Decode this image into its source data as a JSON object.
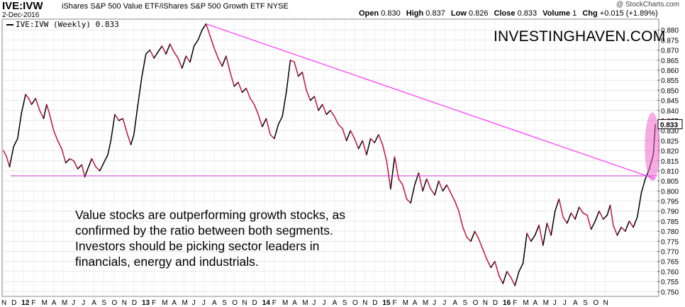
{
  "header": {
    "symbol": "IVE:IVW",
    "full_name": "iShares S&P 500 Value ETF/iShares S&P 500 Growth ETF  NYSE",
    "date": "2-Dec-2016",
    "watermark": "@ StockCharts.com",
    "open_label": "Open",
    "open": "0.830",
    "high_label": "High",
    "high": "0.837",
    "low_label": "Low",
    "low": "0.826",
    "close_label": "Close",
    "close": "0.833",
    "volume_label": "Volume",
    "volume": "1",
    "chg_label": "Chg",
    "chg": "+0.015 (+1.89%)"
  },
  "brand_text": "INVESTINGHAVEN.COM",
  "annotation": "Value stocks are outperforming growth stocks, as confirmed by the ratio between both segments. Investors should be picking sector leaders in financials, energy and industrials.",
  "chart_data": {
    "type": "line",
    "legend": "IVE:IVW (Weekly) 0.833",
    "last_value_label": "0.833",
    "ylim": [
      0.748,
      0.885
    ],
    "y_ticks": [
      "0.750",
      "0.755",
      "0.760",
      "0.765",
      "0.770",
      "0.775",
      "0.780",
      "0.785",
      "0.790",
      "0.795",
      "0.800",
      "0.805",
      "0.810",
      "0.815",
      "0.820",
      "0.825",
      "0.830",
      "0.835",
      "0.840",
      "0.845",
      "0.850",
      "0.855",
      "0.860",
      "0.865",
      "0.870",
      "0.875",
      "0.880"
    ],
    "x_tick_labels": [
      "N",
      "D",
      "12",
      "F",
      "M",
      "A",
      "M",
      "J",
      "J",
      "A",
      "S",
      "O",
      "N",
      "D",
      "13",
      "F",
      "M",
      "A",
      "M",
      "J",
      "J",
      "A",
      "S",
      "O",
      "N",
      "D",
      "14",
      "F",
      "M",
      "A",
      "M",
      "J",
      "J",
      "A",
      "S",
      "O",
      "N",
      "D",
      "15",
      "F",
      "M",
      "A",
      "M",
      "J",
      "J",
      "A",
      "S",
      "O",
      "N",
      "D",
      "16",
      "F",
      "M",
      "A",
      "M",
      "J",
      "J",
      "A",
      "S",
      "O",
      "N"
    ],
    "x_range_months": [
      0,
      61
    ],
    "series": [
      {
        "color_down": "#c0143c",
        "color_up": "#000000",
        "points": [
          [
            0.0,
            0.82
          ],
          [
            0.3,
            0.817
          ],
          [
            0.6,
            0.812
          ],
          [
            1.0,
            0.822
          ],
          [
            1.4,
            0.826
          ],
          [
            1.8,
            0.839
          ],
          [
            2.2,
            0.848
          ],
          [
            2.5,
            0.846
          ],
          [
            2.8,
            0.843
          ],
          [
            3.2,
            0.846
          ],
          [
            3.6,
            0.84
          ],
          [
            4.0,
            0.836
          ],
          [
            4.3,
            0.843
          ],
          [
            4.6,
            0.838
          ],
          [
            5.0,
            0.83
          ],
          [
            5.4,
            0.825
          ],
          [
            5.8,
            0.821
          ],
          [
            6.2,
            0.814
          ],
          [
            6.6,
            0.816
          ],
          [
            7.0,
            0.815
          ],
          [
            7.4,
            0.811
          ],
          [
            7.8,
            0.813
          ],
          [
            8.1,
            0.807
          ],
          [
            8.4,
            0.811
          ],
          [
            8.8,
            0.816
          ],
          [
            9.2,
            0.812
          ],
          [
            9.6,
            0.81
          ],
          [
            10.0,
            0.814
          ],
          [
            10.4,
            0.818
          ],
          [
            10.7,
            0.825
          ],
          [
            11.1,
            0.838
          ],
          [
            11.5,
            0.835
          ],
          [
            11.9,
            0.836
          ],
          [
            12.3,
            0.829
          ],
          [
            12.7,
            0.823
          ],
          [
            13.0,
            0.828
          ],
          [
            13.4,
            0.843
          ],
          [
            13.8,
            0.857
          ],
          [
            14.2,
            0.868
          ],
          [
            14.6,
            0.87
          ],
          [
            15.0,
            0.866
          ],
          [
            15.4,
            0.869
          ],
          [
            15.8,
            0.872
          ],
          [
            16.2,
            0.868
          ],
          [
            16.6,
            0.873
          ],
          [
            17.0,
            0.869
          ],
          [
            17.4,
            0.866
          ],
          [
            17.8,
            0.861
          ],
          [
            18.2,
            0.867
          ],
          [
            18.6,
            0.864
          ],
          [
            19.0,
            0.872
          ],
          [
            19.4,
            0.875
          ],
          [
            19.8,
            0.88
          ],
          [
            20.2,
            0.883
          ],
          [
            20.6,
            0.877
          ],
          [
            21.0,
            0.871
          ],
          [
            21.4,
            0.866
          ],
          [
            21.8,
            0.862
          ],
          [
            22.2,
            0.867
          ],
          [
            22.6,
            0.859
          ],
          [
            23.0,
            0.852
          ],
          [
            23.4,
            0.854
          ],
          [
            23.8,
            0.849
          ],
          [
            24.2,
            0.851
          ],
          [
            24.6,
            0.846
          ],
          [
            25.0,
            0.843
          ],
          [
            25.4,
            0.838
          ],
          [
            25.8,
            0.832
          ],
          [
            26.2,
            0.836
          ],
          [
            26.6,
            0.828
          ],
          [
            27.0,
            0.826
          ],
          [
            27.4,
            0.833
          ],
          [
            27.8,
            0.837
          ],
          [
            28.2,
            0.849
          ],
          [
            28.6,
            0.865
          ],
          [
            29.0,
            0.864
          ],
          [
            29.4,
            0.857
          ],
          [
            29.8,
            0.859
          ],
          [
            30.2,
            0.85
          ],
          [
            30.6,
            0.845
          ],
          [
            31.0,
            0.847
          ],
          [
            31.4,
            0.84
          ],
          [
            31.8,
            0.843
          ],
          [
            32.2,
            0.838
          ],
          [
            32.6,
            0.84
          ],
          [
            33.0,
            0.837
          ],
          [
            33.4,
            0.833
          ],
          [
            33.8,
            0.831
          ],
          [
            34.2,
            0.825
          ],
          [
            34.6,
            0.83
          ],
          [
            35.0,
            0.826
          ],
          [
            35.4,
            0.821
          ],
          [
            35.8,
            0.825
          ],
          [
            36.2,
            0.818
          ],
          [
            36.6,
            0.826
          ],
          [
            37.0,
            0.824
          ],
          [
            37.4,
            0.828
          ],
          [
            37.8,
            0.823
          ],
          [
            38.2,
            0.815
          ],
          [
            38.6,
            0.801
          ],
          [
            39.0,
            0.817
          ],
          [
            39.4,
            0.806
          ],
          [
            39.8,
            0.803
          ],
          [
            40.2,
            0.796
          ],
          [
            40.6,
            0.794
          ],
          [
            41.0,
            0.803
          ],
          [
            41.4,
            0.809
          ],
          [
            41.8,
            0.8
          ],
          [
            42.2,
            0.806
          ],
          [
            42.6,
            0.801
          ],
          [
            43.0,
            0.798
          ],
          [
            43.4,
            0.805
          ],
          [
            43.8,
            0.8
          ],
          [
            44.2,
            0.803
          ],
          [
            44.6,
            0.799
          ],
          [
            45.0,
            0.795
          ],
          [
            45.4,
            0.79
          ],
          [
            45.8,
            0.782
          ],
          [
            46.2,
            0.777
          ],
          [
            46.6,
            0.775
          ],
          [
            47.0,
            0.78
          ],
          [
            47.4,
            0.776
          ],
          [
            47.8,
            0.771
          ],
          [
            48.2,
            0.766
          ],
          [
            48.6,
            0.762
          ],
          [
            49.0,
            0.765
          ],
          [
            49.4,
            0.758
          ],
          [
            49.8,
            0.754
          ],
          [
            50.2,
            0.76
          ],
          [
            50.6,
            0.757
          ],
          [
            51.0,
            0.753
          ],
          [
            51.4,
            0.76
          ],
          [
            51.8,
            0.764
          ],
          [
            52.2,
            0.779
          ],
          [
            52.6,
            0.775
          ],
          [
            53.0,
            0.778
          ],
          [
            53.4,
            0.783
          ],
          [
            53.8,
            0.773
          ],
          [
            54.2,
            0.784
          ],
          [
            54.6,
            0.778
          ],
          [
            55.0,
            0.79
          ],
          [
            55.4,
            0.796
          ],
          [
            55.8,
            0.787
          ],
          [
            56.2,
            0.784
          ],
          [
            56.6,
            0.789
          ],
          [
            57.0,
            0.786
          ],
          [
            57.4,
            0.792
          ],
          [
            57.8,
            0.789
          ],
          [
            58.2,
            0.788
          ],
          [
            58.6,
            0.781
          ],
          [
            59.0,
            0.785
          ],
          [
            59.4,
            0.79
          ],
          [
            59.8,
            0.786
          ],
          [
            60.2,
            0.788
          ],
          [
            60.5,
            0.793
          ],
          [
            60.8,
            0.783
          ],
          [
            61.2,
            0.778
          ],
          [
            61.6,
            0.782
          ],
          [
            62.0,
            0.78
          ],
          [
            62.4,
            0.785
          ],
          [
            62.8,
            0.782
          ],
          [
            63.2,
            0.787
          ],
          [
            63.6,
            0.799
          ],
          [
            64.0,
            0.806
          ],
          [
            64.4,
            0.811
          ],
          [
            64.8,
            0.818
          ],
          [
            65.0,
            0.833
          ]
        ]
      }
    ],
    "trendline": {
      "color": "#ff33ff",
      "start": [
        20.2,
        0.883
      ],
      "end": [
        65.0,
        0.806
      ]
    },
    "horizontal_line": {
      "color": "#cc33cc",
      "y": 0.8075
    },
    "highlight_ellipse": {
      "color": "#ee66cc",
      "center": [
        64.7,
        0.822
      ],
      "rx_months": 0.75,
      "ry": 0.017
    }
  }
}
